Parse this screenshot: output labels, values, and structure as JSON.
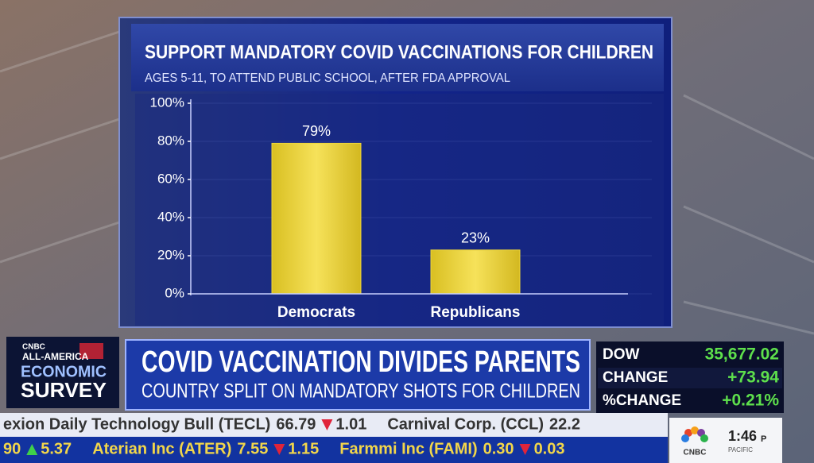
{
  "chart_data": {
    "type": "bar",
    "title": "SUPPORT MANDATORY COVID VACCINATIONS FOR CHILDREN",
    "subtitle": "AGES 5-11, TO ATTEND PUBLIC SCHOOL, AFTER FDA APPROVAL",
    "categories": [
      "Democrats",
      "Republicans"
    ],
    "values": [
      79,
      23
    ],
    "value_labels": [
      "79%",
      "23%"
    ],
    "color": "#f0d83a",
    "ylim": [
      0,
      100
    ],
    "yticks": [
      {
        "value": 0,
        "label": "0%"
      },
      {
        "value": 20,
        "label": "20%"
      },
      {
        "value": 40,
        "label": "40%"
      },
      {
        "value": 60,
        "label": "60%"
      },
      {
        "value": 80,
        "label": "80%"
      },
      {
        "value": 100,
        "label": "100%"
      }
    ],
    "grid": true
  },
  "logo": {
    "brand": "CNBC",
    "line1": "ALL-AMERICA",
    "line2": "ECONOMIC",
    "line3": "SURVEY"
  },
  "headline": {
    "title": "COVID VACCINATION DIVIDES PARENTS",
    "subtitle": "COUNTRY SPLIT ON MANDATORY SHOTS FOR CHILDREN"
  },
  "market": {
    "rows": [
      [
        "DOW",
        "35,677.02"
      ],
      [
        "CHANGE",
        "+73.94"
      ],
      [
        "%CHANGE",
        "+0.21%"
      ]
    ]
  },
  "ticker": {
    "top": [
      {
        "name": "exion Daily Technology Bull (TECL)",
        "price": "66.79",
        "change": "1.01",
        "direction": "down"
      },
      {
        "name": "Carnival Corp. (CCL)",
        "price": "22.2"
      }
    ],
    "bottom": [
      {
        "price": "90",
        "change": "5.37",
        "direction": "up"
      },
      {
        "name": "Aterian Inc (ATER)",
        "price": "7.55",
        "change": "1.15",
        "direction": "down"
      },
      {
        "name": "Farmmi Inc (FAMI)",
        "price": "0.30",
        "change": "0.03",
        "direction": "down"
      }
    ]
  },
  "clock": {
    "time": "1:46",
    "suffix": "P",
    "zone": "PACIFIC",
    "brand": "CNBC"
  }
}
